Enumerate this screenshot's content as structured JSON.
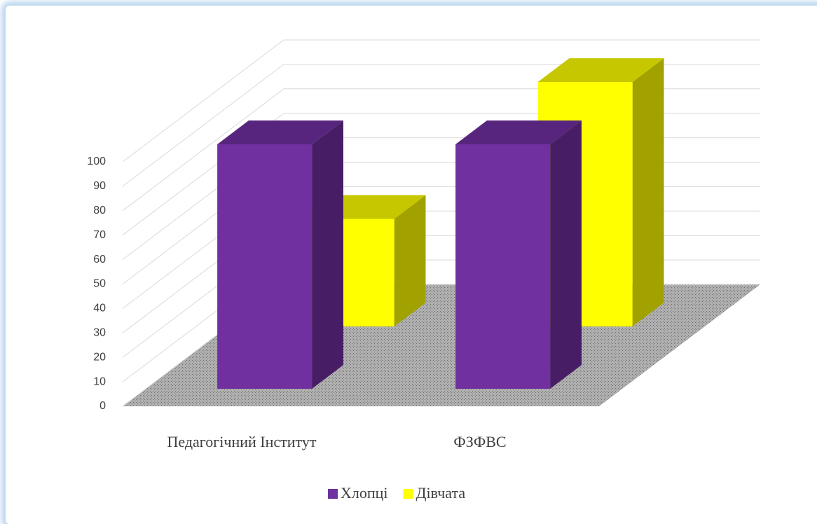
{
  "chart_data": {
    "type": "bar",
    "categories": [
      "Педагогічний Інститут",
      "ФЗФВС"
    ],
    "series": [
      {
        "name": "Хлопці",
        "color": "#7030a0",
        "values": [
          100,
          100
        ]
      },
      {
        "name": "Дівчата",
        "color": "#ffff00",
        "values": [
          44,
          100
        ]
      }
    ],
    "ylim": [
      0,
      100
    ],
    "yticks": [
      0,
      10,
      20,
      30,
      40,
      50,
      60,
      70,
      80,
      90,
      100
    ],
    "grid": true,
    "legend": "bottom"
  }
}
